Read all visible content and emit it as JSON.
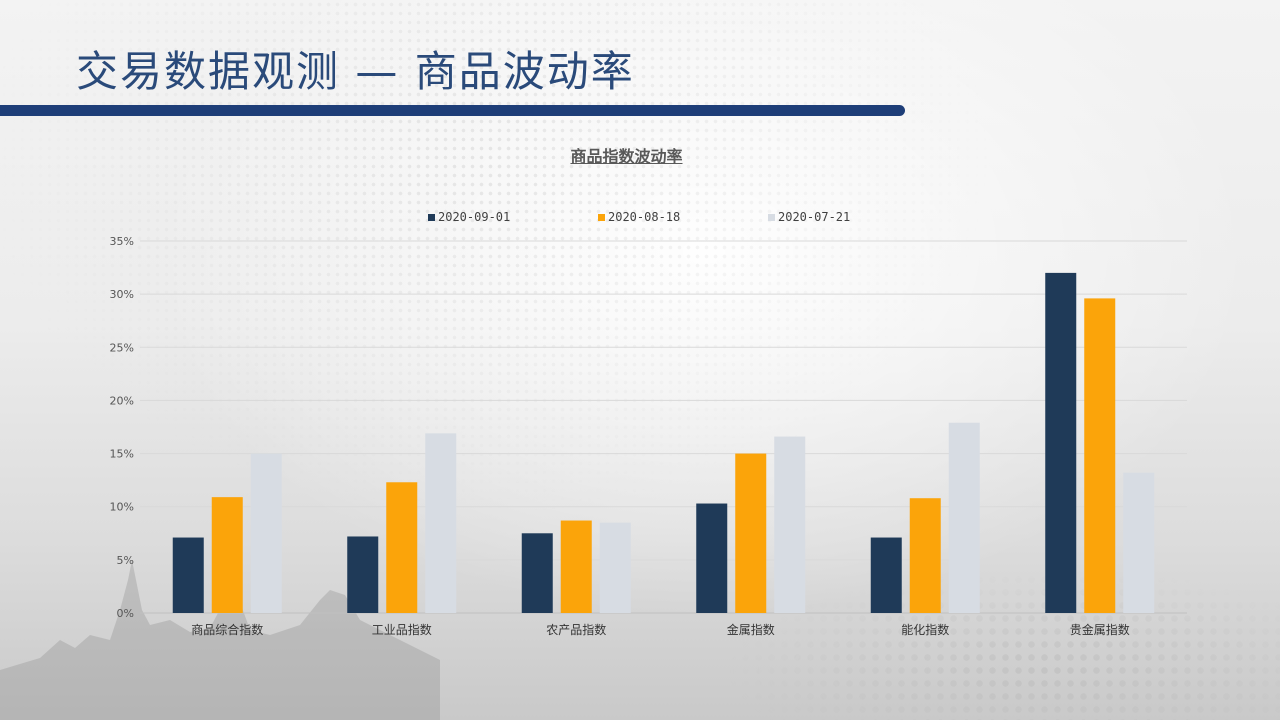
{
  "slide": {
    "title": "交易数据观测 — 商品波动率"
  },
  "colors": {
    "title": "#2a4a7a",
    "title_bar": "#1e3e78",
    "series_1": "#1f3a58",
    "series_2": "#fba40a",
    "series_3": "#d7dce3"
  },
  "chart_data": {
    "type": "bar",
    "title": "商品指数波动率",
    "xlabel": "",
    "ylabel": "",
    "categories": [
      "商品综合指数",
      "工业品指数",
      "农产品指数",
      "金属指数",
      "能化指数",
      "贵金属指数"
    ],
    "series": [
      {
        "name": "2020-09-01",
        "color": "#1f3a58",
        "values": [
          7.1,
          7.2,
          7.5,
          10.3,
          7.1,
          32.0
        ]
      },
      {
        "name": "2020-08-18",
        "color": "#fba40a",
        "values": [
          10.9,
          12.3,
          8.7,
          15.0,
          10.8,
          29.6
        ]
      },
      {
        "name": "2020-07-21",
        "color": "#d7dce3",
        "values": [
          15.0,
          16.9,
          8.5,
          16.6,
          17.9,
          13.2
        ]
      }
    ],
    "ylim": [
      0,
      35
    ],
    "yticks": [
      "0%",
      "5%",
      "10%",
      "15%",
      "20%",
      "25%",
      "30%",
      "35%"
    ],
    "grid": true,
    "legend_position": "top"
  }
}
